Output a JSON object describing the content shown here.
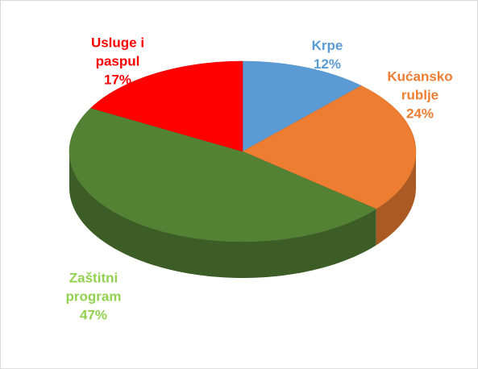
{
  "chart_data": {
    "type": "pie3d",
    "categories": [
      "Krpe",
      "Kućansko rublje",
      "Zaštitni program",
      "Usluge i paspul"
    ],
    "values": [
      12,
      24,
      47,
      17
    ],
    "value_labels": [
      "12%",
      "24%",
      "47%",
      "17%"
    ],
    "colors": [
      "#5b9bd5",
      "#ed7d31",
      "#548235",
      "#ff0000"
    ],
    "label_colors": [
      "#5b9bd5",
      "#ed7d31",
      "#92d050",
      "#ff0000"
    ]
  }
}
